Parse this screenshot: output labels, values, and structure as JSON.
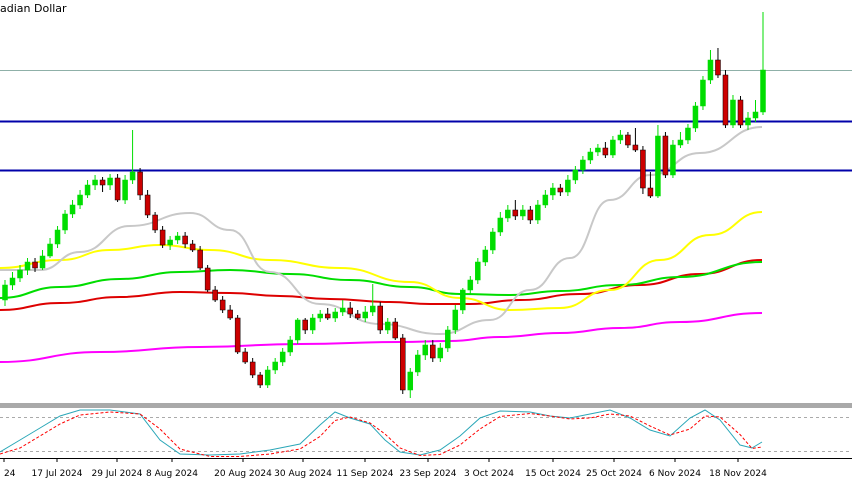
{
  "chart_data": {
    "type": "candlestick",
    "title": "adian Dollar",
    "x_tick_labels": [
      "24",
      "17 Jul 2024",
      "29 Jul 2024",
      "8 Aug 2024",
      "20 Aug 2024",
      "30 Aug 2024",
      "11 Sep 2024",
      "23 Sep 2024",
      "3 Oct 2024",
      "15 Oct 2024",
      "25 Oct 2024",
      "6 Nov 2024",
      "18 Nov 2024"
    ],
    "colors": {
      "bull": "#00dd00",
      "bear": "#cc0000",
      "ma_fast": "#c8c8c8",
      "ma_50": "#ffff00",
      "ma_100": "#00dd00",
      "ma_200": "#dd0000",
      "ma_400": "#ff00ff",
      "hline": "#0000aa",
      "stoch_k": "#2aa7b8",
      "stoch_d": "#ff0000"
    },
    "horizontal_levels": [
      "upper",
      "lower"
    ],
    "candles": [
      [
        300,
        285,
        306,
        280
      ],
      [
        285,
        278,
        290,
        272
      ],
      [
        278,
        270,
        282,
        265
      ],
      [
        270,
        262,
        275,
        258
      ],
      [
        262,
        268,
        272,
        258
      ],
      [
        268,
        256,
        270,
        250
      ],
      [
        256,
        244,
        258,
        238
      ],
      [
        244,
        230,
        248,
        226
      ],
      [
        230,
        214,
        234,
        210
      ],
      [
        214,
        205,
        218,
        200
      ],
      [
        205,
        195,
        209,
        190
      ],
      [
        195,
        185,
        198,
        180
      ],
      [
        185,
        180,
        190,
        175
      ],
      [
        180,
        185,
        192,
        177
      ],
      [
        185,
        178,
        190,
        174
      ],
      [
        178,
        200,
        202,
        174
      ],
      [
        200,
        180,
        204,
        175
      ],
      [
        180,
        172,
        184,
        130
      ],
      [
        172,
        195,
        200,
        168
      ],
      [
        195,
        215,
        218,
        190
      ],
      [
        215,
        230,
        233,
        212
      ],
      [
        230,
        245,
        248,
        226
      ],
      [
        245,
        240,
        250,
        236
      ],
      [
        240,
        236,
        244,
        232
      ],
      [
        236,
        244,
        248,
        232
      ],
      [
        244,
        250,
        252,
        240
      ],
      [
        250,
        268,
        270,
        246
      ],
      [
        268,
        290,
        292,
        265
      ],
      [
        290,
        300,
        302,
        286
      ],
      [
        300,
        310,
        313,
        296
      ],
      [
        310,
        318,
        320,
        305
      ],
      [
        318,
        352,
        354,
        315
      ],
      [
        352,
        362,
        364,
        348
      ],
      [
        362,
        375,
        378,
        358
      ],
      [
        375,
        385,
        388,
        372
      ],
      [
        385,
        370,
        388,
        366
      ],
      [
        370,
        362,
        374,
        358
      ],
      [
        362,
        352,
        366,
        348
      ],
      [
        352,
        340,
        356,
        336
      ],
      [
        340,
        320,
        344,
        318
      ],
      [
        320,
        330,
        334,
        318
      ],
      [
        330,
        318,
        334,
        314
      ],
      [
        318,
        314,
        322,
        310
      ],
      [
        314,
        318,
        320,
        308
      ],
      [
        318,
        312,
        322,
        308
      ],
      [
        312,
        308,
        316,
        300
      ],
      [
        308,
        314,
        318,
        302
      ],
      [
        314,
        318,
        320,
        310
      ],
      [
        318,
        312,
        322,
        306
      ],
      [
        312,
        306,
        316,
        284
      ],
      [
        306,
        330,
        334,
        302
      ],
      [
        330,
        322,
        334,
        318
      ],
      [
        322,
        338,
        340,
        318
      ],
      [
        338,
        390,
        394,
        334
      ],
      [
        390,
        372,
        398,
        368
      ],
      [
        372,
        355,
        376,
        350
      ],
      [
        355,
        345,
        360,
        340
      ],
      [
        345,
        358,
        362,
        340
      ],
      [
        358,
        348,
        362,
        343
      ],
      [
        348,
        330,
        352,
        326
      ],
      [
        330,
        310,
        334,
        305
      ],
      [
        310,
        290,
        314,
        288
      ],
      [
        290,
        280,
        294,
        276
      ],
      [
        280,
        262,
        284,
        258
      ],
      [
        262,
        250,
        266,
        246
      ],
      [
        250,
        232,
        254,
        228
      ],
      [
        232,
        218,
        236,
        212
      ],
      [
        218,
        210,
        222,
        205
      ],
      [
        210,
        216,
        220,
        200
      ],
      [
        216,
        210,
        220,
        205
      ],
      [
        210,
        220,
        224,
        206
      ],
      [
        220,
        205,
        224,
        200
      ],
      [
        205,
        195,
        208,
        190
      ],
      [
        195,
        188,
        200,
        183
      ],
      [
        188,
        192,
        196,
        184
      ],
      [
        192,
        180,
        196,
        175
      ],
      [
        180,
        170,
        184,
        166
      ],
      [
        170,
        160,
        174,
        156
      ],
      [
        160,
        152,
        164,
        148
      ],
      [
        152,
        148,
        156,
        144
      ],
      [
        148,
        155,
        158,
        142
      ],
      [
        155,
        140,
        158,
        136
      ],
      [
        140,
        135,
        144,
        130
      ],
      [
        135,
        145,
        148,
        132
      ],
      [
        145,
        150,
        152,
        128
      ],
      [
        150,
        188,
        194,
        146
      ],
      [
        188,
        196,
        198,
        172
      ],
      [
        196,
        136,
        198,
        125
      ],
      [
        136,
        175,
        178,
        132
      ],
      [
        175,
        145,
        178,
        140
      ],
      [
        145,
        140,
        148,
        132
      ],
      [
        140,
        128,
        144,
        124
      ],
      [
        128,
        106,
        132,
        102
      ],
      [
        106,
        80,
        110,
        76
      ],
      [
        80,
        60,
        84,
        50
      ],
      [
        60,
        75,
        78,
        48
      ],
      [
        75,
        125,
        128,
        70
      ],
      [
        125,
        100,
        128,
        95
      ],
      [
        100,
        125,
        128,
        96
      ],
      [
        125,
        118,
        130,
        112
      ],
      [
        118,
        112,
        122,
        100
      ],
      [
        112,
        70,
        115,
        12
      ]
    ]
  }
}
